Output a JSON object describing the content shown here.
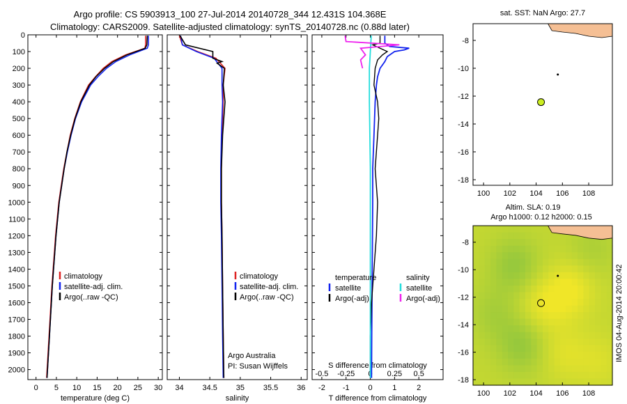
{
  "title_line1": "Argo profile: CS 5903913_100 27-Jul-2014 20140728_344 12.431S 104.368E",
  "title_line2": "Climatology: CARS2009. Satellite-adjusted climatology: synTS_20140728.nc (0.88d later)",
  "side_label": "IMOS 04-Aug-2014 20:00:42",
  "colors": {
    "climatology": "#dd2222",
    "satellite": "#1122ee",
    "argo": "#000000",
    "cyan": "#22dddd",
    "magenta": "#ee22ee",
    "land": "#f5bf94",
    "marker_yellow": "#ccee22"
  },
  "chart_data": [
    {
      "type": "line",
      "id": "temperature",
      "xlabel": "temperature (deg C)",
      "ylabel": "",
      "xlim": [
        -2,
        31
      ],
      "ylim": [
        2060,
        0
      ],
      "xticks": [
        "0",
        "5",
        "10",
        "15",
        "20",
        "25",
        "30"
      ],
      "yticks": [
        "0",
        "100",
        "200",
        "300",
        "400",
        "500",
        "600",
        "700",
        "800",
        "900",
        "1000",
        "1100",
        "1200",
        "1300",
        "1400",
        "1500",
        "1600",
        "1700",
        "1800",
        "1900",
        "2000"
      ],
      "legend": [
        "climatology",
        "satellite-adj. clim.",
        "Argo(..raw -QC)"
      ],
      "series": [
        {
          "name": "climatology",
          "depth": [
            5,
            60,
            80,
            120,
            160,
            200,
            250,
            300,
            400,
            500,
            600,
            700,
            800,
            1000,
            1200,
            1500,
            1800,
            2050
          ],
          "values": [
            26.9,
            26.9,
            26.7,
            22,
            18.6,
            16.5,
            14.6,
            12.9,
            10.9,
            9.5,
            8.4,
            7.6,
            6.8,
            5.6,
            4.8,
            3.9,
            3.2,
            2.6
          ]
        },
        {
          "name": "satellite-adj. clim.",
          "depth": [
            5,
            60,
            80,
            120,
            160,
            200,
            250,
            300,
            400,
            500,
            600,
            700,
            800,
            1000,
            1200,
            1500,
            1800,
            2050
          ],
          "values": [
            27.6,
            27.6,
            27.3,
            23,
            19.6,
            17.3,
            15.2,
            13.4,
            11.2,
            9.7,
            8.6,
            7.7,
            6.9,
            5.7,
            4.9,
            4.0,
            3.3,
            2.7
          ]
        },
        {
          "name": "Argo(..raw -QC)",
          "depth": [
            5,
            60,
            80,
            120,
            160,
            200,
            250,
            300,
            400,
            500,
            600,
            700,
            800,
            1000,
            1200,
            1500,
            1800,
            2050
          ],
          "values": [
            27.3,
            27.2,
            26.8,
            22.3,
            19,
            16.8,
            14.7,
            13.1,
            11,
            9.6,
            8.5,
            7.6,
            6.9,
            5.7,
            4.9,
            4.0,
            3.3,
            2.7
          ]
        }
      ]
    },
    {
      "type": "line",
      "id": "salinity",
      "xlabel": "salinity",
      "ylabel": "",
      "xlim": [
        33.8,
        36.1
      ],
      "ylim": [
        2060,
        0
      ],
      "xticks": [
        "34",
        "34.5",
        "35",
        "35.5",
        "36"
      ],
      "legend": [
        "climatology",
        "satellite-adj. clim.",
        "Argo(..raw -QC)"
      ],
      "annotation": [
        "Argo Australia",
        "PI: Susan Wijffels"
      ],
      "series": [
        {
          "name": "climatology",
          "depth": [
            5,
            60,
            100,
            140,
            200,
            300,
            400,
            600,
            800,
            1000,
            1200,
            1500,
            1800,
            2050
          ],
          "values": [
            34.0,
            34.05,
            34.3,
            34.6,
            34.75,
            34.72,
            34.72,
            34.7,
            34.69,
            34.69,
            34.7,
            34.71,
            34.72,
            34.73
          ]
        },
        {
          "name": "satellite-adj. clim.",
          "depth": [
            5,
            60,
            100,
            140,
            200,
            300,
            400,
            600,
            800,
            1000,
            1200,
            1500,
            1800,
            2050
          ],
          "values": [
            34.02,
            34.05,
            34.28,
            34.57,
            34.7,
            34.7,
            34.71,
            34.69,
            34.68,
            34.68,
            34.69,
            34.7,
            34.71,
            34.72
          ]
        },
        {
          "name": "Argo(..raw -QC)",
          "depth": [
            5,
            60,
            100,
            140,
            160,
            170,
            200,
            300,
            400,
            600,
            800,
            1000,
            1200,
            1500,
            1800,
            2050
          ],
          "values": [
            34.01,
            34.1,
            34.55,
            34.55,
            34.7,
            34.62,
            34.74,
            34.72,
            34.75,
            34.71,
            34.69,
            34.69,
            34.7,
            34.71,
            34.72,
            34.73
          ]
        }
      ]
    },
    {
      "type": "line",
      "id": "differences",
      "xlabel": "T difference from climatology",
      "xlabel_top": "S difference from climatology",
      "xlim": [
        -2.4,
        3.0
      ],
      "ylim": [
        2060,
        0
      ],
      "xticks": [
        "-2",
        "-1",
        "0",
        "1",
        "2"
      ],
      "xticks_s": [
        "-0.5",
        "-0.25",
        "0",
        "0.25",
        "0.5"
      ],
      "legend": {
        "temperature": [
          "satellite",
          "Argo(-adj)"
        ],
        "salinity": [
          "satellite",
          "Argo(-adj)"
        ],
        "header_t": "temperature",
        "header_s": "salinity"
      },
      "series": [
        {
          "name": "T satellite",
          "depth": [
            5,
            50,
            70,
            80,
            90,
            100,
            130,
            160,
            200,
            250,
            300,
            400,
            600,
            800,
            1000,
            1400,
            1800,
            2050
          ],
          "values": [
            0.6,
            0.6,
            0.8,
            1.6,
            1.4,
            1.0,
            0.7,
            0.6,
            0.4,
            0.3,
            0.25,
            0.2,
            0.15,
            0.1,
            0.1,
            0.08,
            0.06,
            0.05
          ]
        },
        {
          "name": "T Argo(-adj)",
          "depth": [
            5,
            50,
            60,
            100,
            120,
            150,
            200,
            300,
            400,
            500,
            600,
            800,
            1000,
            1200,
            1400,
            1600,
            1800,
            2050
          ],
          "values": [
            0.4,
            0.4,
            0.1,
            0.7,
            0.5,
            0.3,
            0.2,
            0.15,
            0.3,
            0.35,
            0.3,
            0.2,
            0.3,
            0.25,
            0.15,
            0.05,
            0.0,
            0.0
          ]
        },
        {
          "name": "S satellite",
          "depth": [
            5,
            100,
            200,
            400,
            800,
            1200,
            1600,
            2050
          ],
          "values": [
            0.01,
            0.0,
            -0.01,
            -0.01,
            0.0,
            0.0,
            0.0,
            0.0
          ]
        },
        {
          "name": "S Argo(-adj)",
          "depth": [
            5,
            40,
            60,
            80,
            120,
            150,
            200
          ],
          "values": [
            -0.26,
            -0.25,
            0.3,
            -0.1,
            -0.05,
            -0.1,
            -0.08
          ]
        }
      ]
    },
    {
      "type": "scatter",
      "id": "map_sst",
      "title": "sat. SST: NaN Argo: 27.7",
      "xlim": [
        99.2,
        109.8
      ],
      "ylim": [
        -18.4,
        -6.8
      ],
      "xticks": [
        "100",
        "102",
        "104",
        "106",
        "108"
      ],
      "yticks": [
        "-8",
        "-10",
        "-12",
        "-14",
        "-16",
        "-18"
      ],
      "points": [
        {
          "lon": 104.37,
          "lat": -12.43
        }
      ]
    },
    {
      "type": "heatmap",
      "id": "map_sla",
      "title_line1": "Altim. SLA: 0.19",
      "title_line2": "Argo h1000: 0.12 h2000: 0.15",
      "xlim": [
        99.2,
        109.8
      ],
      "ylim": [
        -18.4,
        -6.8
      ],
      "xticks": [
        "100",
        "102",
        "104",
        "106",
        "108"
      ],
      "yticks": [
        "-8",
        "-10",
        "-12",
        "-14",
        "-16",
        "-18"
      ],
      "points": [
        {
          "lon": 104.37,
          "lat": -12.43
        }
      ]
    }
  ]
}
